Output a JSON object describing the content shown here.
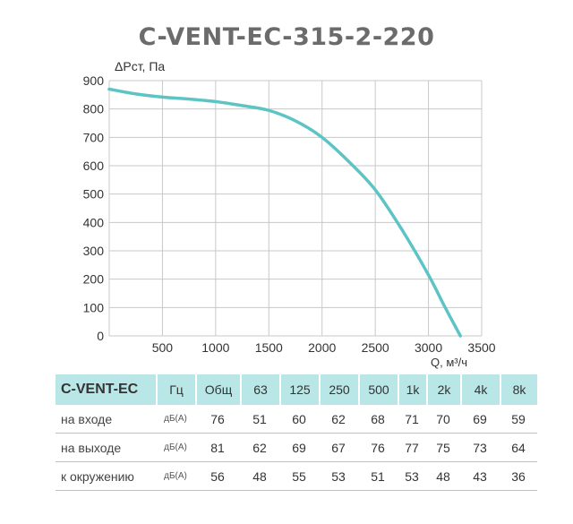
{
  "chart_data": {
    "type": "line",
    "title": "C-VENT-EC-315-2-220",
    "ylabel": "ΔPст, Па",
    "xlabel": "Q, м³/ч",
    "xlim": [
      0,
      3500
    ],
    "ylim": [
      0,
      900
    ],
    "x_ticks": [
      "500",
      "1000",
      "1500",
      "2000",
      "2500",
      "3000",
      "3500"
    ],
    "y_ticks": [
      "0",
      "100",
      "200",
      "300",
      "400",
      "500",
      "600",
      "700",
      "800",
      "900"
    ],
    "grid": true,
    "series": [
      {
        "color": "#5cc4c4",
        "x": [
          0,
          250,
          500,
          750,
          1000,
          1250,
          1500,
          1750,
          2000,
          2250,
          2500,
          2750,
          3000,
          3150,
          3300
        ],
        "y": [
          870,
          853,
          842,
          835,
          826,
          812,
          795,
          758,
          700,
          615,
          515,
          375,
          215,
          105,
          0
        ]
      }
    ]
  },
  "table": {
    "model_header": "C-VENT-EC",
    "hz_header": "Гц",
    "total_header": "Общ",
    "freq_headers": [
      "63",
      "125",
      "250",
      "500",
      "1k",
      "2k",
      "4k",
      "8k"
    ],
    "rows": [
      {
        "label": "на входе",
        "unit": "дБ(А)",
        "total": "76",
        "values": [
          "51",
          "60",
          "62",
          "68",
          "71",
          "70",
          "69",
          "59"
        ]
      },
      {
        "label": "на выходе",
        "unit": "дБ(А)",
        "total": "81",
        "values": [
          "62",
          "69",
          "67",
          "76",
          "77",
          "75",
          "73",
          "64"
        ]
      },
      {
        "label": "к окружению",
        "unit": "дБ(А)",
        "total": "56",
        "values": [
          "48",
          "55",
          "53",
          "51",
          "53",
          "48",
          "43",
          "36"
        ]
      }
    ]
  }
}
